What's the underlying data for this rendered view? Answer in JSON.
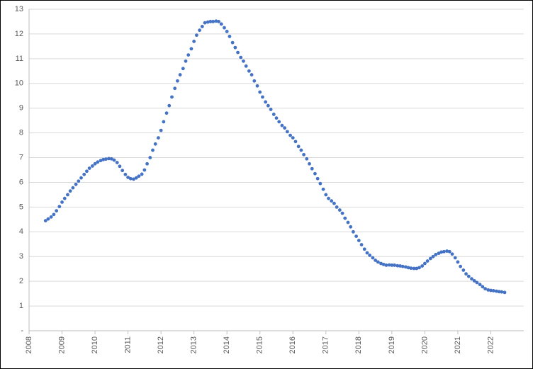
{
  "chart_data": {
    "type": "scatter",
    "x": [
      2008.5,
      2008.58,
      2008.67,
      2008.75,
      2008.83,
      2008.92,
      2009,
      2009.08,
      2009.17,
      2009.25,
      2009.33,
      2009.42,
      2009.5,
      2009.58,
      2009.67,
      2009.75,
      2009.83,
      2009.92,
      2010,
      2010.08,
      2010.17,
      2010.25,
      2010.33,
      2010.42,
      2010.5,
      2010.58,
      2010.67,
      2010.75,
      2010.83,
      2010.92,
      2011,
      2011.08,
      2011.17,
      2011.25,
      2011.33,
      2011.42,
      2011.5,
      2011.58,
      2011.67,
      2011.75,
      2011.83,
      2011.92,
      2012,
      2012.08,
      2012.17,
      2012.25,
      2012.33,
      2012.42,
      2012.5,
      2012.58,
      2012.67,
      2012.75,
      2012.83,
      2012.92,
      2013,
      2013.08,
      2013.17,
      2013.25,
      2013.33,
      2013.42,
      2013.5,
      2013.58,
      2013.67,
      2013.75,
      2013.83,
      2013.92,
      2014,
      2014.08,
      2014.17,
      2014.25,
      2014.33,
      2014.42,
      2014.5,
      2014.58,
      2014.67,
      2014.75,
      2014.83,
      2014.92,
      2015,
      2015.08,
      2015.17,
      2015.25,
      2015.33,
      2015.42,
      2015.5,
      2015.58,
      2015.67,
      2015.75,
      2015.83,
      2015.92,
      2016,
      2016.08,
      2016.17,
      2016.25,
      2016.33,
      2016.42,
      2016.5,
      2016.58,
      2016.67,
      2016.75,
      2016.83,
      2016.92,
      2017,
      2017.08,
      2017.17,
      2017.25,
      2017.33,
      2017.42,
      2017.5,
      2017.58,
      2017.67,
      2017.75,
      2017.83,
      2017.92,
      2018,
      2018.08,
      2018.17,
      2018.25,
      2018.33,
      2018.42,
      2018.5,
      2018.58,
      2018.67,
      2018.75,
      2018.83,
      2018.92,
      2019,
      2019.08,
      2019.17,
      2019.25,
      2019.33,
      2019.42,
      2019.5,
      2019.58,
      2019.67,
      2019.75,
      2019.83,
      2019.92,
      2020,
      2020.08,
      2020.17,
      2020.25,
      2020.33,
      2020.42,
      2020.5,
      2020.58,
      2020.67,
      2020.75,
      2020.83,
      2020.92,
      2021,
      2021.08,
      2021.17,
      2021.25,
      2021.33,
      2021.42,
      2021.5,
      2021.58,
      2021.67,
      2021.75,
      2021.83,
      2021.92,
      2022,
      2022.08,
      2022.17,
      2022.25,
      2022.33,
      2022.42
    ],
    "values": [
      4.45,
      4.52,
      4.6,
      4.7,
      4.85,
      5.02,
      5.2,
      5.35,
      5.5,
      5.65,
      5.78,
      5.92,
      6.05,
      6.18,
      6.32,
      6.45,
      6.57,
      6.66,
      6.75,
      6.82,
      6.88,
      6.92,
      6.94,
      6.96,
      6.95,
      6.9,
      6.8,
      6.65,
      6.48,
      6.32,
      6.2,
      6.15,
      6.13,
      6.18,
      6.25,
      6.33,
      6.5,
      6.75,
      7.0,
      7.3,
      7.55,
      7.8,
      8.1,
      8.45,
      8.8,
      9.1,
      9.45,
      9.8,
      10.1,
      10.35,
      10.6,
      10.9,
      11.15,
      11.4,
      11.7,
      11.95,
      12.15,
      12.3,
      12.45,
      12.48,
      12.5,
      12.5,
      12.52,
      12.5,
      12.4,
      12.25,
      12.1,
      11.9,
      11.65,
      11.45,
      11.25,
      11.05,
      10.9,
      10.7,
      10.5,
      10.35,
      10.1,
      9.9,
      9.65,
      9.45,
      9.25,
      9.1,
      8.95,
      8.75,
      8.6,
      8.45,
      8.3,
      8.2,
      8.05,
      7.9,
      7.8,
      7.65,
      7.45,
      7.3,
      7.12,
      6.95,
      6.75,
      6.55,
      6.35,
      6.15,
      5.95,
      5.72,
      5.5,
      5.35,
      5.25,
      5.15,
      5.0,
      4.88,
      4.75,
      4.55,
      4.38,
      4.2,
      4.0,
      3.82,
      3.65,
      3.48,
      3.3,
      3.15,
      3.05,
      2.95,
      2.85,
      2.78,
      2.72,
      2.68,
      2.65,
      2.66,
      2.65,
      2.65,
      2.63,
      2.62,
      2.6,
      2.58,
      2.55,
      2.53,
      2.52,
      2.52,
      2.55,
      2.62,
      2.72,
      2.82,
      2.92,
      3.0,
      3.08,
      3.13,
      3.18,
      3.2,
      3.22,
      3.2,
      3.1,
      2.95,
      2.78,
      2.6,
      2.45,
      2.3,
      2.2,
      2.1,
      2.02,
      1.95,
      1.87,
      1.78,
      1.7,
      1.65,
      1.63,
      1.62,
      1.6,
      1.58,
      1.57,
      1.55
    ],
    "color": "#4472c4",
    "xlim": [
      2008,
      2023
    ],
    "xticks": [
      2008,
      2009,
      2010,
      2011,
      2012,
      2013,
      2014,
      2015,
      2016,
      2017,
      2018,
      2019,
      2020,
      2021,
      2022
    ],
    "ylim": [
      0,
      13
    ],
    "yticks": [
      {
        "value": 0,
        "label": "-"
      },
      1,
      2,
      3,
      4,
      5,
      6,
      7,
      8,
      9,
      10,
      11,
      12,
      13
    ],
    "grid": true
  }
}
